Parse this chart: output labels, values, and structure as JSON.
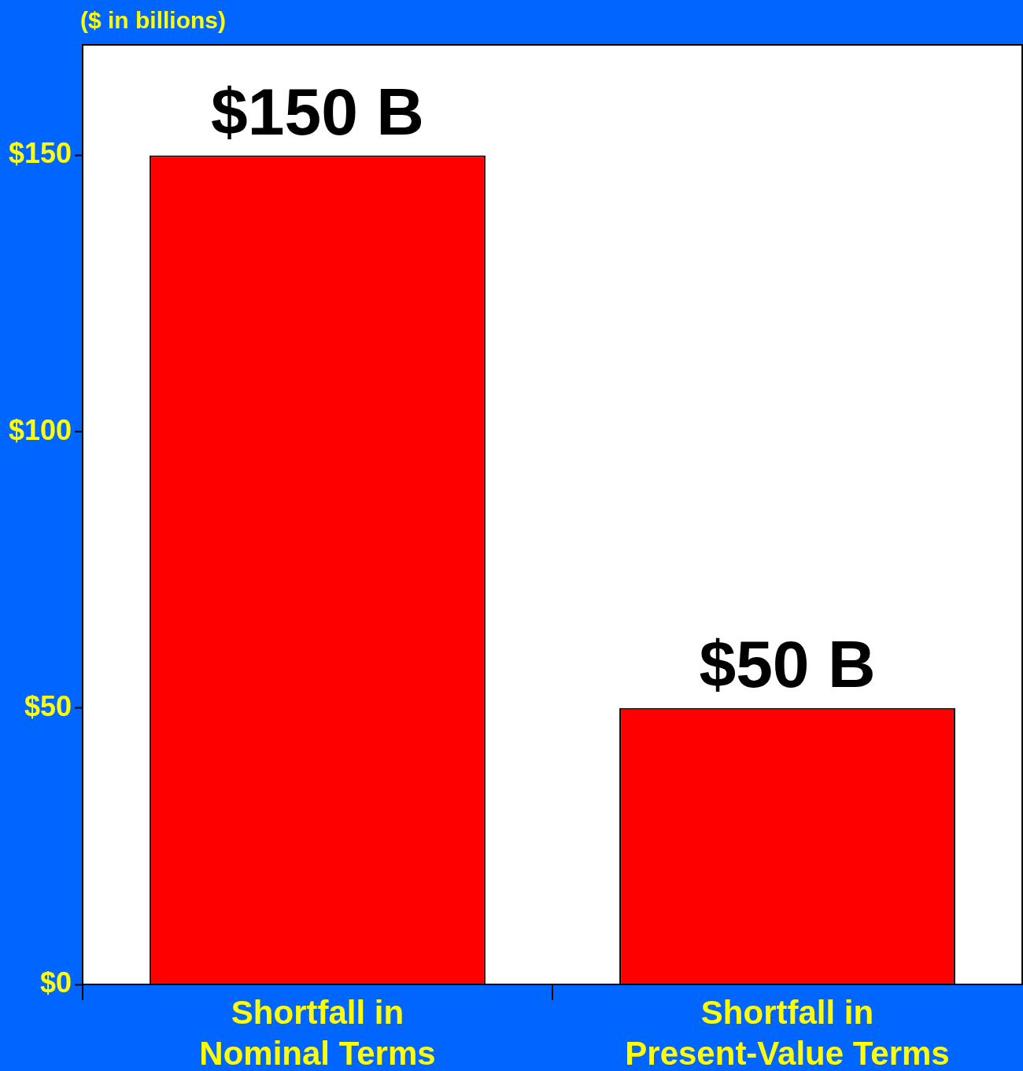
{
  "chart_data": {
    "type": "bar",
    "ylabel": "($ in billions)",
    "categories": [
      "Shortfall in\nNominal Terms",
      "Shortfall in\nPresent-Value Terms"
    ],
    "values": [
      150,
      50
    ],
    "color": "#ff0000",
    "value_labels": [
      "$150 B",
      "$50 B"
    ],
    "ylim": [
      0,
      170
    ],
    "yticks": [
      {
        "value": 0,
        "label": "$0"
      },
      {
        "value": 50,
        "label": "$50"
      },
      {
        "value": 100,
        "label": "$100"
      },
      {
        "value": 150,
        "label": "$150"
      }
    ],
    "grid": false,
    "legend": false
  }
}
